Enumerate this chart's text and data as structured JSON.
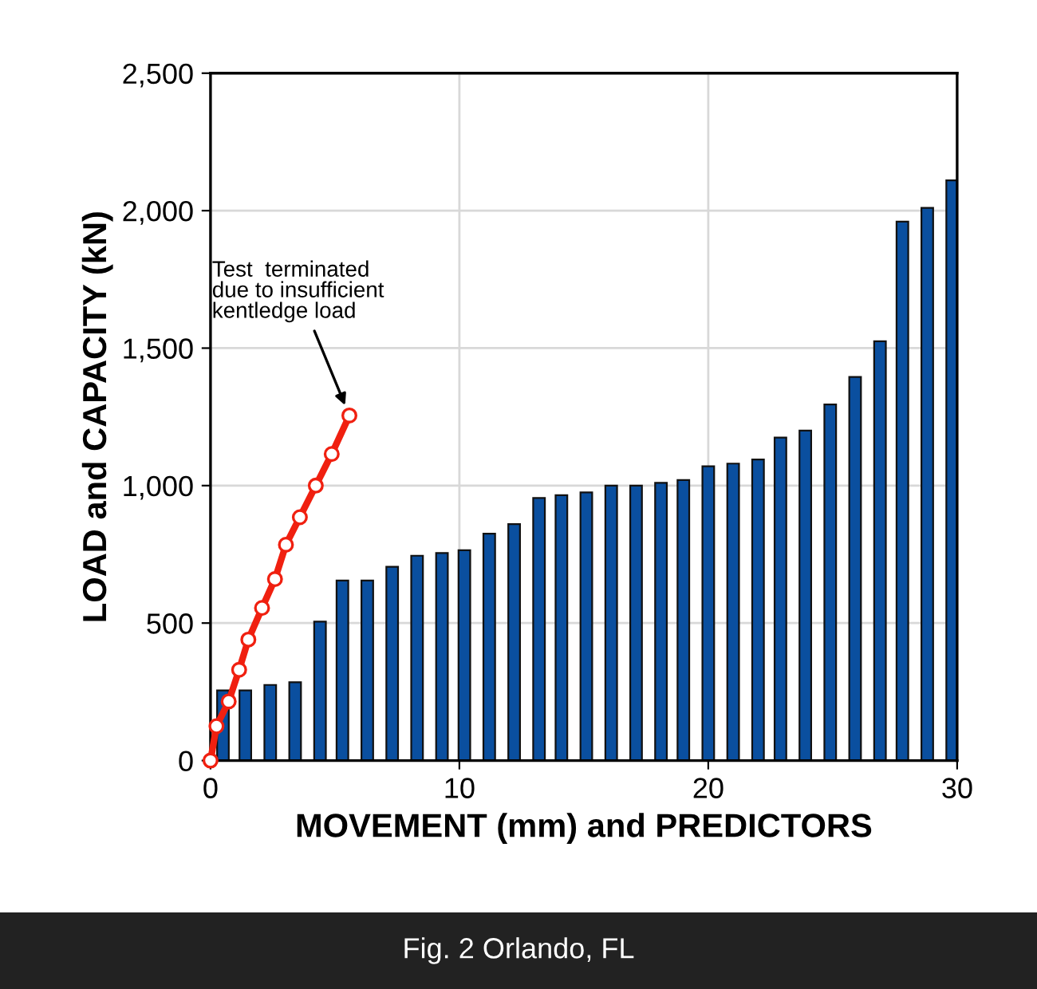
{
  "chart_data": {
    "type": "bar",
    "xlabel": "MOVEMENT (mm) and PREDICTORS",
    "ylabel": "LOAD and CAPACITY (kN)",
    "xlim": [
      0,
      30
    ],
    "xticks": [
      0,
      10,
      20,
      30
    ],
    "ylim": [
      0,
      2500
    ],
    "yticks": [
      0,
      {
        "value": 500,
        "label": "500"
      },
      {
        "value": 1000,
        "label": "1,000"
      },
      {
        "value": 1500,
        "label": "1,500"
      },
      {
        "value": 2000,
        "label": "2,000"
      },
      {
        "value": 2500,
        "label": "2,500"
      }
    ],
    "grid": true,
    "series": [
      {
        "color": "#0a4f9f",
        "x": [
          0.5,
          1.4,
          2.4,
          3.4,
          4.4,
          5.3,
          6.3,
          7.3,
          8.3,
          9.3,
          10.2,
          11.2,
          12.2,
          13.2,
          14.1,
          15.1,
          16.1,
          17.1,
          18.1,
          19.0,
          20.0,
          21.0,
          22.0,
          22.9,
          23.9,
          24.9,
          25.9,
          26.9,
          27.8,
          28.8,
          29.8
        ],
        "values": [
          255,
          255,
          275,
          285,
          505,
          655,
          655,
          705,
          745,
          755,
          765,
          825,
          860,
          955,
          965,
          975,
          1000,
          1000,
          1010,
          1020,
          1070,
          1080,
          1095,
          1175,
          1200,
          1295,
          1395,
          1525,
          1960,
          2010,
          2110
        ]
      },
      {
        "type": "line",
        "color": "#f02010",
        "marker": "circle",
        "line_style": "solid",
        "x": [
          0,
          0.24,
          0.73,
          1.15,
          1.52,
          2.07,
          2.59,
          3.03,
          3.59,
          4.23,
          4.87,
          5.58
        ],
        "values": [
          0,
          125,
          215,
          330,
          440,
          555,
          660,
          785,
          885,
          1000,
          1115,
          1255
        ]
      }
    ],
    "annotations": [
      {
        "text": "Test  terminated\ndue to insufficient\nkentledge load",
        "x": 5.58,
        "y": 1255
      },
      "Fig. 2 Orlando, FL"
    ]
  }
}
